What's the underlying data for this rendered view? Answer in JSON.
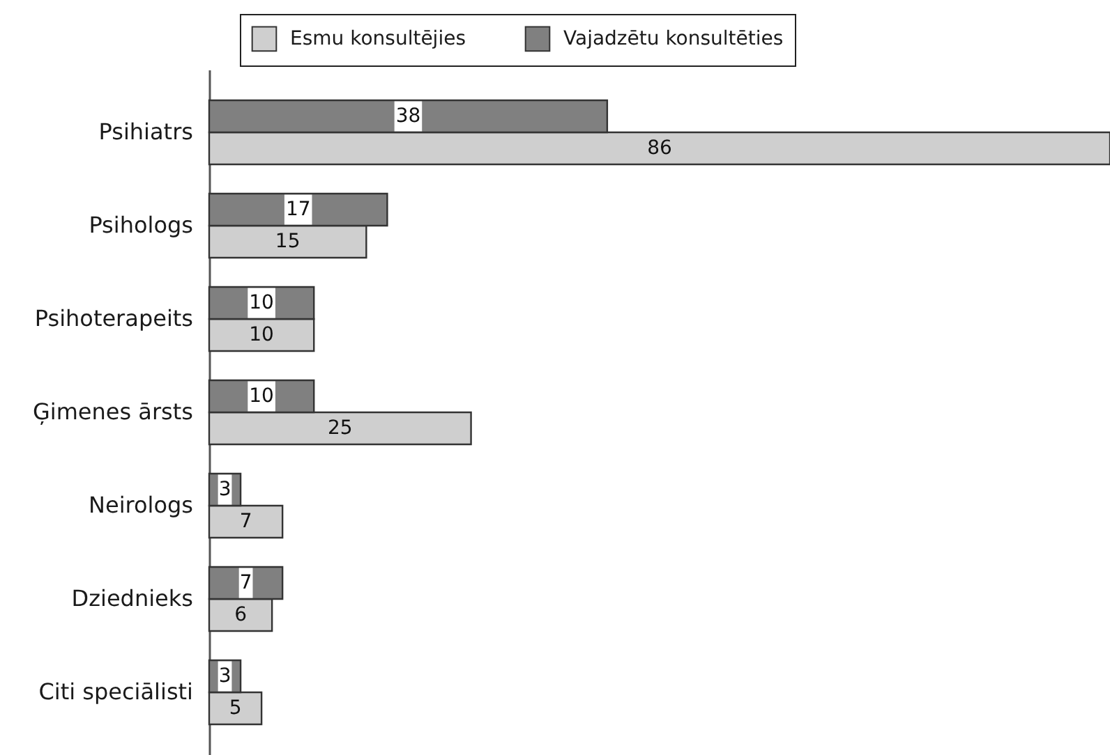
{
  "chart_data": {
    "type": "bar",
    "orientation": "horizontal",
    "categories": [
      "Psihiatrs",
      "Psihologs",
      "Psihoterapeits",
      "Ģimenes ārsts",
      "Neirologs",
      "Dziednieks",
      "Citi speciālisti"
    ],
    "series": [
      {
        "name": "Esmu konsultējies",
        "color": "#cfcfcf",
        "values": [
          86,
          15,
          10,
          25,
          7,
          6,
          5
        ]
      },
      {
        "name": "Vajadzētu konsultēties",
        "color": "#808080",
        "values": [
          38,
          17,
          10,
          10,
          3,
          7,
          3
        ]
      }
    ],
    "data_labels": true,
    "legend": "top",
    "tick_labels": "y"
  }
}
